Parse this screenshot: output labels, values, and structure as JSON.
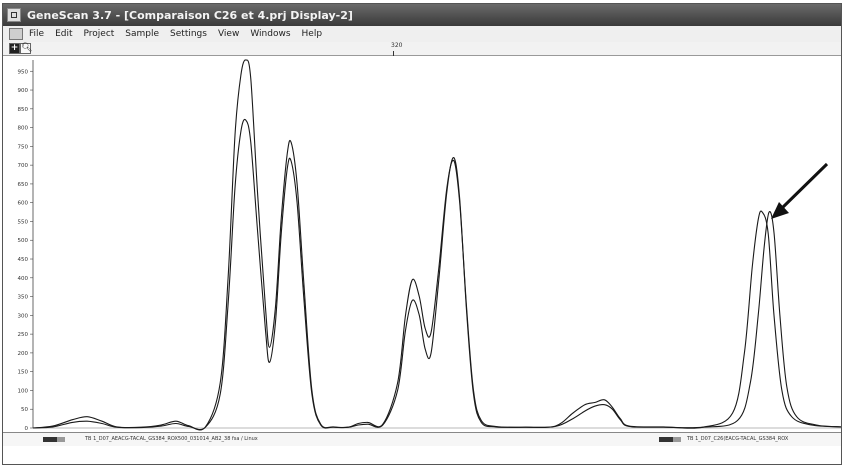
{
  "window": {
    "title": "GeneScan 3.7 - [Comparaison C26 et 4.prj Display-2]"
  },
  "menu": {
    "items": [
      "File",
      "Edit",
      "Project",
      "Sample",
      "Settings",
      "View",
      "Windows",
      "Help"
    ]
  },
  "toolbar": {
    "zoom_tool_glyph": "+",
    "magnify_tool_glyph": "🔍︎",
    "ruler_label": "320"
  },
  "plot": {
    "y_ticks": [
      "0",
      "50",
      "100",
      "150",
      "200",
      "250",
      "300",
      "350",
      "400",
      "450",
      "500",
      "550",
      "600",
      "650",
      "700",
      "750",
      "800",
      "850",
      "900",
      "950"
    ],
    "trace_color": "#1a1a1a"
  },
  "chart_data": {
    "type": "line",
    "ylim": [
      0,
      980
    ],
    "xlim": [
      0,
      820
    ],
    "series": [
      {
        "values_xy": [
          [
            0,
            0
          ],
          [
            20,
            5
          ],
          [
            40,
            22
          ],
          [
            55,
            30
          ],
          [
            70,
            18
          ],
          [
            85,
            3
          ],
          [
            110,
            2
          ],
          [
            130,
            8
          ],
          [
            145,
            18
          ],
          [
            158,
            6
          ],
          [
            175,
            3
          ],
          [
            190,
            120
          ],
          [
            198,
            400
          ],
          [
            205,
            780
          ],
          [
            211,
            940
          ],
          [
            216,
            980
          ],
          [
            221,
            930
          ],
          [
            228,
            620
          ],
          [
            236,
            320
          ],
          [
            240,
            215
          ],
          [
            246,
            320
          ],
          [
            252,
            560
          ],
          [
            258,
            730
          ],
          [
            262,
            760
          ],
          [
            268,
            650
          ],
          [
            275,
            380
          ],
          [
            283,
            100
          ],
          [
            292,
            10
          ],
          [
            305,
            3
          ],
          [
            320,
            2
          ],
          [
            330,
            12
          ],
          [
            340,
            15
          ],
          [
            355,
            10
          ],
          [
            370,
            120
          ],
          [
            378,
            300
          ],
          [
            385,
            395
          ],
          [
            392,
            350
          ],
          [
            398,
            265
          ],
          [
            404,
            255
          ],
          [
            412,
            430
          ],
          [
            420,
            640
          ],
          [
            427,
            712
          ],
          [
            433,
            600
          ],
          [
            440,
            320
          ],
          [
            447,
            100
          ],
          [
            455,
            20
          ],
          [
            470,
            4
          ],
          [
            500,
            2
          ],
          [
            530,
            5
          ],
          [
            548,
            40
          ],
          [
            560,
            62
          ],
          [
            570,
            68
          ],
          [
            580,
            75
          ],
          [
            588,
            55
          ],
          [
            596,
            25
          ],
          [
            605,
            5
          ],
          [
            640,
            3
          ],
          [
            680,
            2
          ],
          [
            710,
            40
          ],
          [
            722,
            200
          ],
          [
            730,
            430
          ],
          [
            736,
            555
          ],
          [
            740,
            575
          ],
          [
            746,
            520
          ],
          [
            752,
            300
          ],
          [
            760,
            100
          ],
          [
            770,
            30
          ],
          [
            790,
            8
          ],
          [
            820,
            3
          ]
        ]
      },
      {
        "values_xy": [
          [
            0,
            0
          ],
          [
            20,
            3
          ],
          [
            40,
            15
          ],
          [
            55,
            18
          ],
          [
            70,
            12
          ],
          [
            85,
            2
          ],
          [
            110,
            1
          ],
          [
            130,
            5
          ],
          [
            145,
            12
          ],
          [
            158,
            4
          ],
          [
            175,
            2
          ],
          [
            190,
            90
          ],
          [
            198,
            330
          ],
          [
            205,
            640
          ],
          [
            211,
            790
          ],
          [
            216,
            820
          ],
          [
            221,
            760
          ],
          [
            228,
            520
          ],
          [
            236,
            260
          ],
          [
            240,
            175
          ],
          [
            246,
            280
          ],
          [
            252,
            520
          ],
          [
            258,
            690
          ],
          [
            262,
            710
          ],
          [
            268,
            600
          ],
          [
            275,
            340
          ],
          [
            283,
            90
          ],
          [
            292,
            8
          ],
          [
            305,
            2
          ],
          [
            320,
            2
          ],
          [
            330,
            8
          ],
          [
            340,
            10
          ],
          [
            355,
            8
          ],
          [
            370,
            100
          ],
          [
            378,
            260
          ],
          [
            385,
            340
          ],
          [
            392,
            300
          ],
          [
            398,
            210
          ],
          [
            404,
            200
          ],
          [
            412,
            400
          ],
          [
            420,
            630
          ],
          [
            427,
            720
          ],
          [
            433,
            610
          ],
          [
            440,
            310
          ],
          [
            447,
            90
          ],
          [
            455,
            15
          ],
          [
            470,
            3
          ],
          [
            500,
            2
          ],
          [
            530,
            4
          ],
          [
            548,
            25
          ],
          [
            560,
            45
          ],
          [
            570,
            58
          ],
          [
            580,
            62
          ],
          [
            588,
            50
          ],
          [
            596,
            22
          ],
          [
            605,
            4
          ],
          [
            640,
            2
          ],
          [
            680,
            2
          ],
          [
            715,
            20
          ],
          [
            728,
            120
          ],
          [
            736,
            300
          ],
          [
            742,
            480
          ],
          [
            747,
            575
          ],
          [
            752,
            520
          ],
          [
            758,
            300
          ],
          [
            765,
            110
          ],
          [
            775,
            30
          ],
          [
            795,
            8
          ],
          [
            820,
            3
          ]
        ]
      }
    ],
    "annotation": "arrow pointing to rightmost peak pair"
  },
  "status": {
    "sample1_label": "TB 1_D07_AEACG-TACAL_GS384_ROX500_031014_AB2_38 fsa / Linux",
    "sample2_label": "TB 1_D07_C26(EACG-TACAL_GS384_ROX"
  }
}
